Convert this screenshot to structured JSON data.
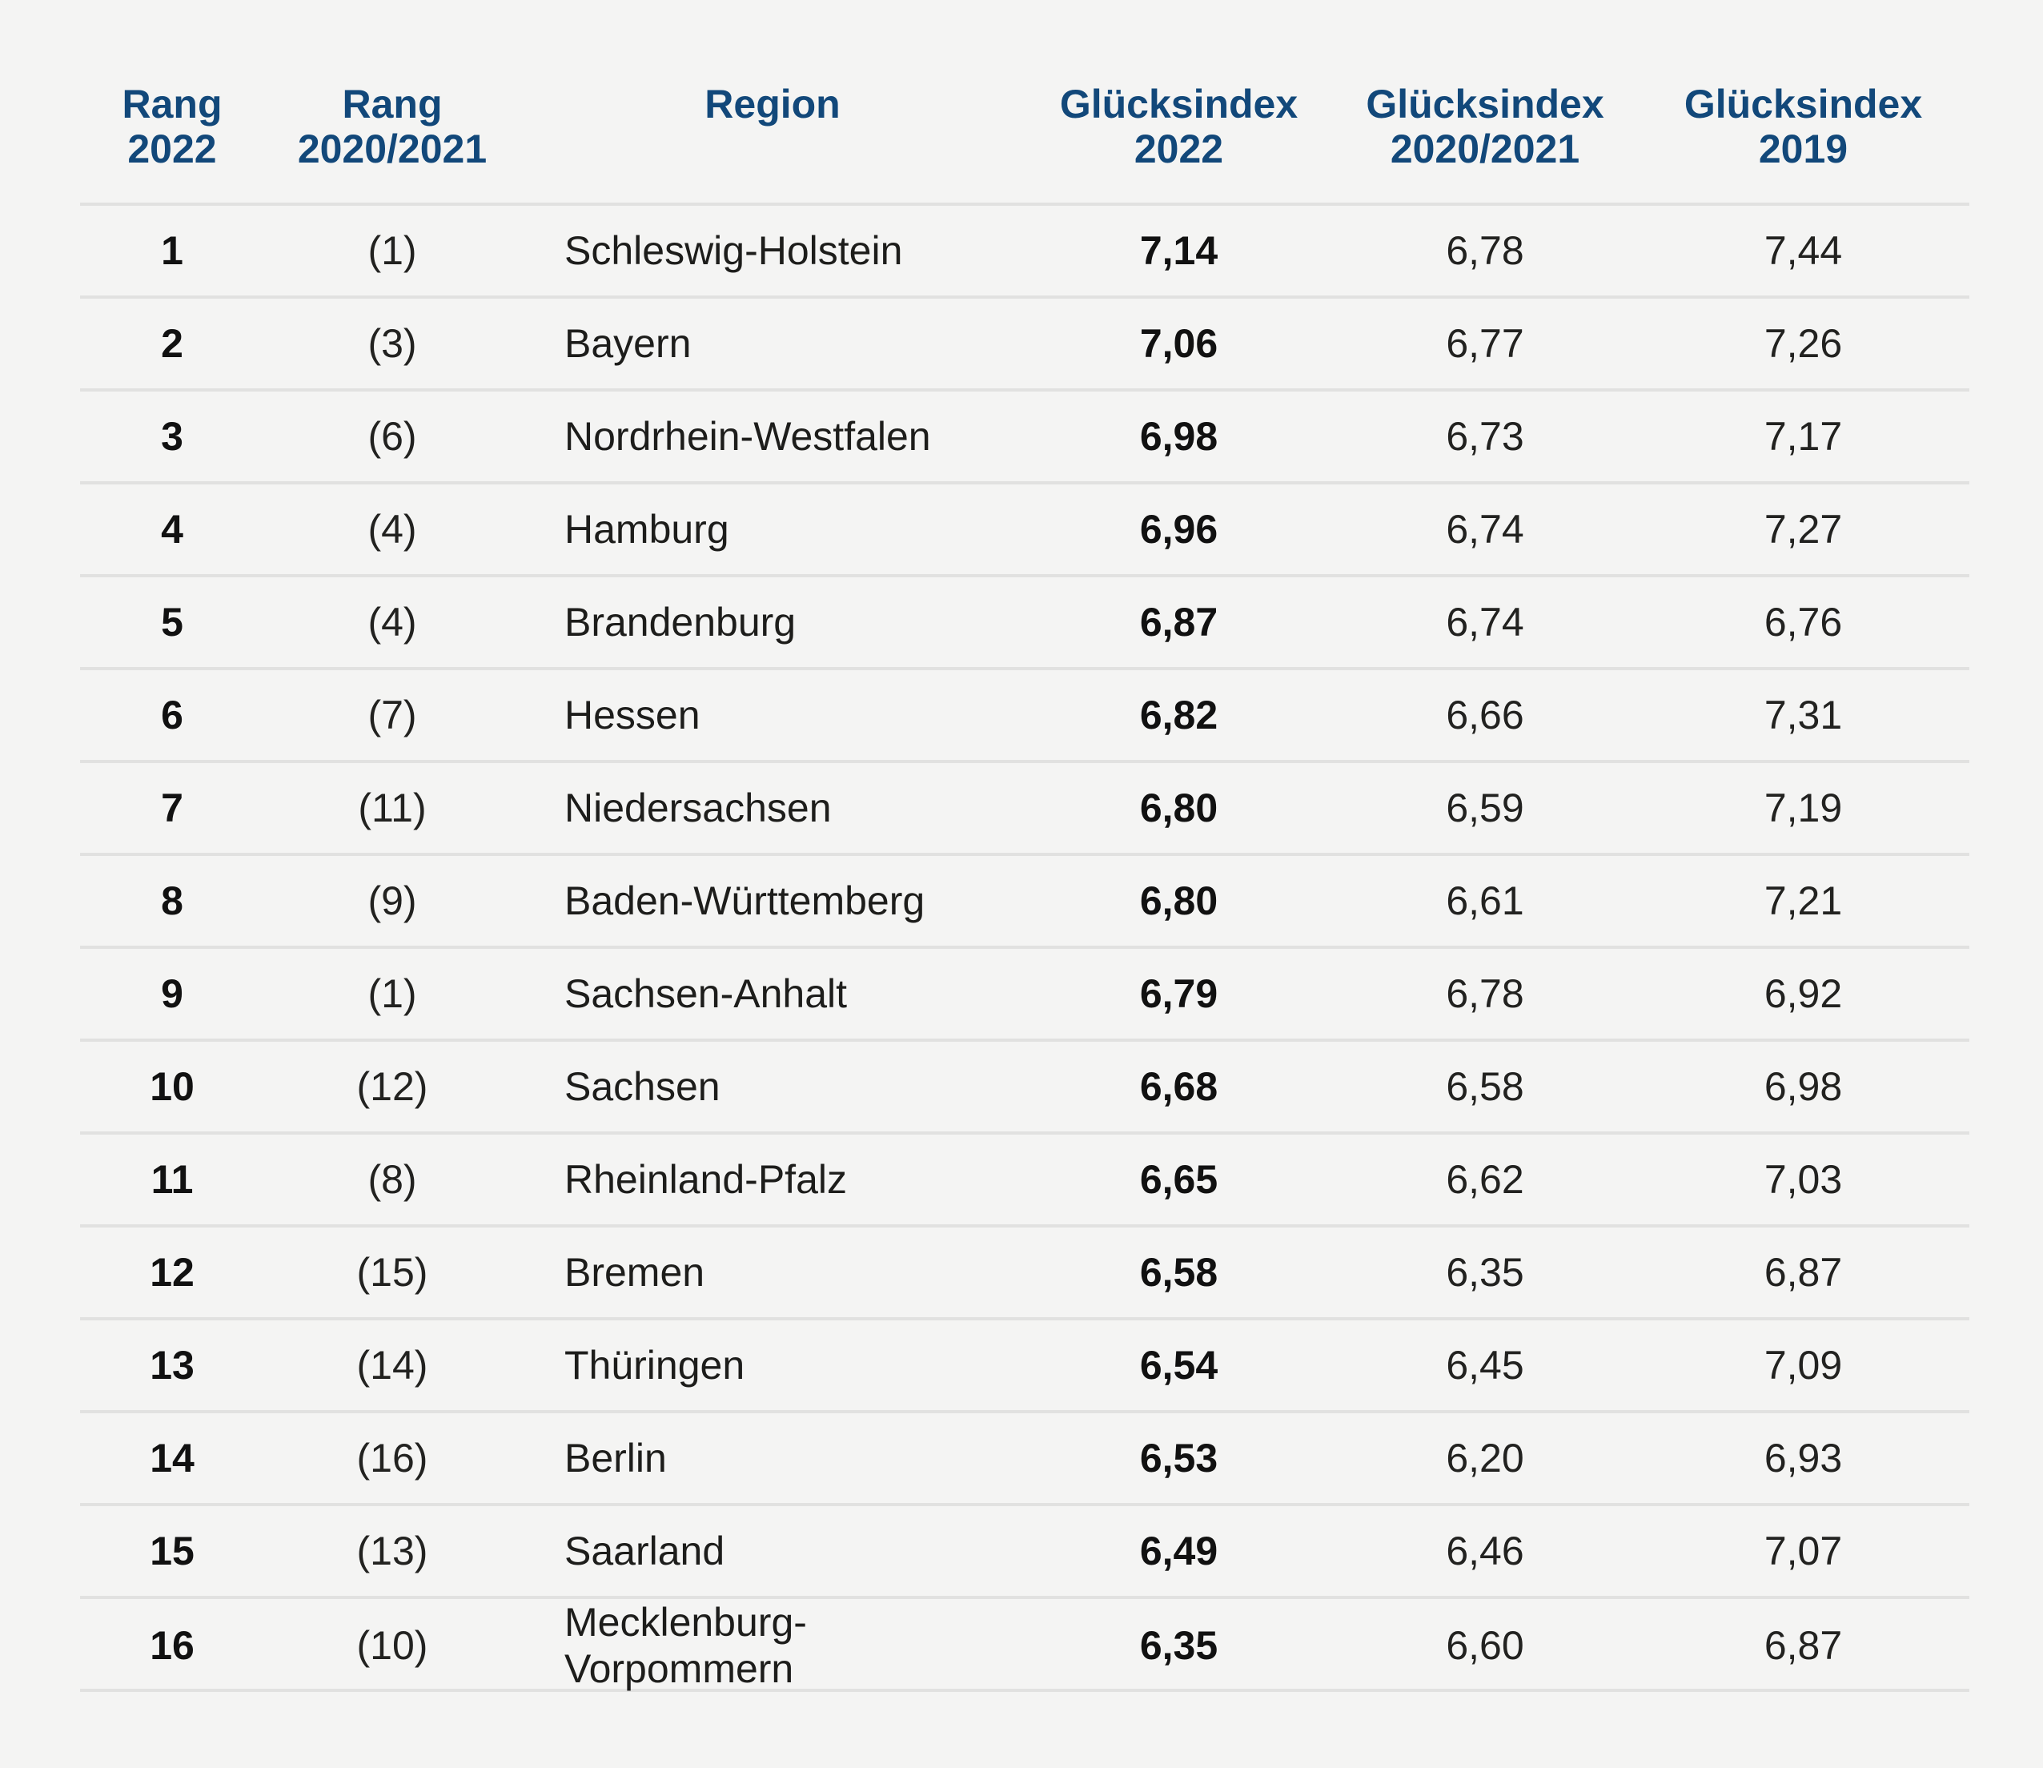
{
  "colors": {
    "background": "#f4f4f3",
    "header_text": "#12487a",
    "divider": "#e1e1e0",
    "body_text": "#1d1d1b"
  },
  "headers": [
    {
      "line1": "Rang",
      "line2": "2022"
    },
    {
      "line1": "Rang",
      "line2": "2020/2021"
    },
    {
      "line1": "Region",
      "line2": ""
    },
    {
      "line1": "Glücksindex",
      "line2": "2022"
    },
    {
      "line1": "Glücksindex",
      "line2": "2020/2021"
    },
    {
      "line1": "Glücksindex",
      "line2": "2019"
    }
  ],
  "chart_data": {
    "type": "table",
    "columns": [
      "Rang 2022",
      "Rang 2020/2021",
      "Region",
      "Glücksindex 2022",
      "Glücksindex 2020/2021",
      "Glücksindex 2019"
    ],
    "rows": [
      {
        "rank": "1",
        "prev": "(1)",
        "region": "Schleswig-Holstein",
        "g2022": "7,14",
        "g2021": "6,78",
        "g2019": "7,44"
      },
      {
        "rank": "2",
        "prev": "(3)",
        "region": "Bayern",
        "g2022": "7,06",
        "g2021": "6,77",
        "g2019": "7,26"
      },
      {
        "rank": "3",
        "prev": "(6)",
        "region": "Nordrhein-Westfalen",
        "g2022": "6,98",
        "g2021": "6,73",
        "g2019": "7,17"
      },
      {
        "rank": "4",
        "prev": "(4)",
        "region": "Hamburg",
        "g2022": "6,96",
        "g2021": "6,74",
        "g2019": "7,27"
      },
      {
        "rank": "5",
        "prev": "(4)",
        "region": "Brandenburg",
        "g2022": "6,87",
        "g2021": "6,74",
        "g2019": "6,76"
      },
      {
        "rank": "6",
        "prev": "(7)",
        "region": "Hessen",
        "g2022": "6,82",
        "g2021": "6,66",
        "g2019": "7,31"
      },
      {
        "rank": "7",
        "prev": "(11)",
        "region": "Niedersachsen",
        "g2022": "6,80",
        "g2021": "6,59",
        "g2019": "7,19"
      },
      {
        "rank": "8",
        "prev": "(9)",
        "region": "Baden-Württemberg",
        "g2022": "6,80",
        "g2021": "6,61",
        "g2019": "7,21"
      },
      {
        "rank": "9",
        "prev": "(1)",
        "region": "Sachsen-Anhalt",
        "g2022": "6,79",
        "g2021": "6,78",
        "g2019": "6,92"
      },
      {
        "rank": "10",
        "prev": "(12)",
        "region": "Sachsen",
        "g2022": "6,68",
        "g2021": "6,58",
        "g2019": "6,98"
      },
      {
        "rank": "11",
        "prev": "(8)",
        "region": "Rheinland-Pfalz",
        "g2022": "6,65",
        "g2021": "6,62",
        "g2019": "7,03"
      },
      {
        "rank": "12",
        "prev": "(15)",
        "region": "Bremen",
        "g2022": "6,58",
        "g2021": "6,35",
        "g2019": "6,87"
      },
      {
        "rank": "13",
        "prev": "(14)",
        "region": "Thüringen",
        "g2022": "6,54",
        "g2021": "6,45",
        "g2019": "7,09"
      },
      {
        "rank": "14",
        "prev": "(16)",
        "region": "Berlin",
        "g2022": "6,53",
        "g2021": "6,20",
        "g2019": "6,93"
      },
      {
        "rank": "15",
        "prev": "(13)",
        "region": "Saarland",
        "g2022": "6,49",
        "g2021": "6,46",
        "g2019": "7,07"
      },
      {
        "rank": "16",
        "prev": "(10)",
        "region": "Mecklenburg-Vorpommern",
        "g2022": "6,35",
        "g2021": "6,60",
        "g2019": "6,87"
      }
    ]
  }
}
